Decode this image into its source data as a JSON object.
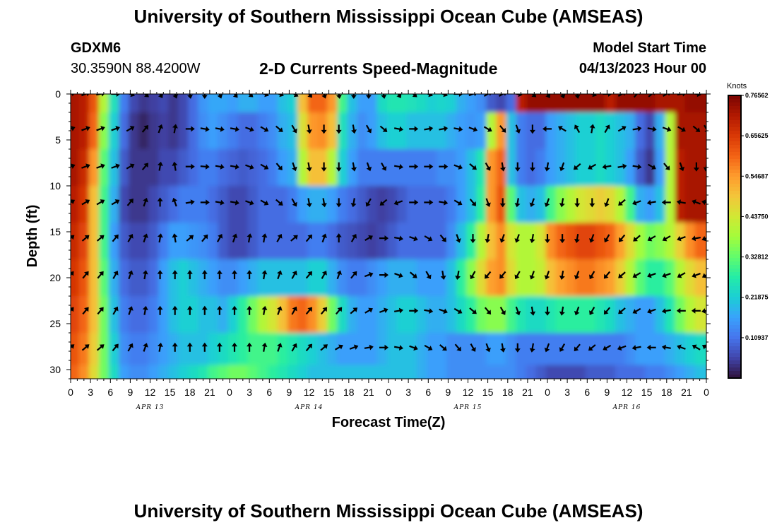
{
  "header": {
    "title": "University of Southern Mississippi Ocean Cube (AMSEAS)",
    "station_id": "GDXM6",
    "station_location": "30.3590N  88.4200W",
    "plot_title": "2-D Currents Speed-Magnitude",
    "model_start_label": "Model Start Time",
    "model_start_value": "04/13/2023 Hour 00"
  },
  "footer": {
    "title": "University of Southern Mississippi Ocean Cube (AMSEAS)"
  },
  "colors": {
    "colormap": [
      "#30123b",
      "#4145ab",
      "#4675ed",
      "#39a2fc",
      "#1bcfd4",
      "#24eca6",
      "#61fc6c",
      "#a4fc3b",
      "#d1e834",
      "#f3c63a",
      "#fe9b2d",
      "#f36315",
      "#d93806",
      "#b11901",
      "#7a0402"
    ]
  },
  "chart_data": {
    "type": "heatmap",
    "title": "2-D Currents Speed-Magnitude",
    "xlabel": "Forecast Time(Z)",
    "ylabel": "Depth (ft)",
    "x_range_hours": [
      0,
      96
    ],
    "y_range_ft": [
      0,
      31
    ],
    "x_tick_labels": [
      "0",
      "3",
      "6",
      "9",
      "12",
      "15",
      "18",
      "21",
      "0",
      "3",
      "6",
      "9",
      "12",
      "15",
      "18",
      "21",
      "0",
      "3",
      "6",
      "9",
      "12",
      "15",
      "18",
      "21",
      "0",
      "3",
      "6",
      "9",
      "12",
      "15",
      "18",
      "21",
      "0"
    ],
    "y_ticks": [
      0,
      5,
      10,
      15,
      20,
      25,
      30
    ],
    "day_labels": [
      {
        "label": "APR 13",
        "hour": 12
      },
      {
        "label": "APR 14",
        "hour": 36
      },
      {
        "label": "APR 15",
        "hour": 60
      },
      {
        "label": "APR 16",
        "hour": 84
      }
    ],
    "colorbar": {
      "unit": "Knots",
      "min": 0.0,
      "max": 0.7656,
      "tick_labels": [
        "0.76562",
        "0.65625",
        "0.54687",
        "0.43750",
        "0.32812",
        "0.21875",
        "0.10937"
      ],
      "tick_values": [
        0.76562,
        0.65625,
        0.54687,
        0.4375,
        0.32812,
        0.21875,
        0.10937
      ]
    },
    "depth_levels_ft": [
      0,
      4,
      8,
      12,
      16,
      20,
      24,
      28,
      31
    ],
    "time_step_hours": 1.5,
    "speed_knots": [
      [
        0.72,
        0.72,
        0.7,
        0.62,
        0.4,
        0.25,
        0.12,
        0.06,
        0.04,
        0.05,
        0.06,
        0.04,
        0.06,
        0.1,
        0.15,
        0.17,
        0.17,
        0.16,
        0.18,
        0.18,
        0.16,
        0.16,
        0.2,
        0.22,
        0.5,
        0.6,
        0.6,
        0.55,
        0.3,
        0.2,
        0.16,
        0.16,
        0.24,
        0.26,
        0.26,
        0.25,
        0.24,
        0.22,
        0.23,
        0.22,
        0.18,
        0.16,
        0.14,
        0.08,
        0.06,
        0.1,
        0.7,
        0.74,
        0.74,
        0.74,
        0.74,
        0.74,
        0.74,
        0.74,
        0.74,
        0.7,
        0.74,
        0.74,
        0.74,
        0.74,
        0.72,
        0.72,
        0.72,
        0.74,
        0.74
      ],
      [
        0.72,
        0.72,
        0.7,
        0.6,
        0.36,
        0.22,
        0.1,
        0.04,
        0.02,
        0.04,
        0.05,
        0.04,
        0.06,
        0.1,
        0.14,
        0.16,
        0.14,
        0.12,
        0.1,
        0.1,
        0.12,
        0.14,
        0.18,
        0.2,
        0.45,
        0.55,
        0.56,
        0.5,
        0.25,
        0.18,
        0.14,
        0.16,
        0.2,
        0.22,
        0.22,
        0.2,
        0.2,
        0.2,
        0.2,
        0.18,
        0.16,
        0.15,
        0.16,
        0.4,
        0.55,
        0.2,
        0.12,
        0.1,
        0.1,
        0.16,
        0.18,
        0.2,
        0.22,
        0.22,
        0.24,
        0.22,
        0.2,
        0.18,
        0.1,
        0.06,
        0.18,
        0.4,
        0.72,
        0.72,
        0.72
      ],
      [
        0.72,
        0.72,
        0.68,
        0.55,
        0.32,
        0.2,
        0.08,
        0.04,
        0.04,
        0.04,
        0.06,
        0.06,
        0.08,
        0.1,
        0.12,
        0.12,
        0.1,
        0.09,
        0.08,
        0.09,
        0.1,
        0.12,
        0.16,
        0.18,
        0.4,
        0.5,
        0.5,
        0.4,
        0.22,
        0.16,
        0.12,
        0.12,
        0.12,
        0.12,
        0.12,
        0.12,
        0.12,
        0.12,
        0.14,
        0.14,
        0.16,
        0.2,
        0.26,
        0.55,
        0.6,
        0.2,
        0.12,
        0.1,
        0.12,
        0.16,
        0.18,
        0.2,
        0.22,
        0.22,
        0.24,
        0.22,
        0.2,
        0.16,
        0.08,
        0.04,
        0.16,
        0.4,
        0.7,
        0.72,
        0.72
      ],
      [
        0.7,
        0.7,
        0.66,
        0.5,
        0.3,
        0.18,
        0.06,
        0.04,
        0.04,
        0.06,
        0.08,
        0.1,
        0.12,
        0.12,
        0.12,
        0.1,
        0.08,
        0.06,
        0.06,
        0.08,
        0.1,
        0.1,
        0.1,
        0.12,
        0.16,
        0.18,
        0.18,
        0.16,
        0.12,
        0.1,
        0.08,
        0.06,
        0.05,
        0.06,
        0.08,
        0.1,
        0.1,
        0.1,
        0.1,
        0.12,
        0.16,
        0.2,
        0.28,
        0.55,
        0.62,
        0.32,
        0.2,
        0.18,
        0.2,
        0.3,
        0.36,
        0.4,
        0.44,
        0.46,
        0.48,
        0.46,
        0.4,
        0.3,
        0.18,
        0.16,
        0.2,
        0.4,
        0.7,
        0.72,
        0.72
      ],
      [
        0.68,
        0.68,
        0.64,
        0.5,
        0.3,
        0.16,
        0.08,
        0.06,
        0.06,
        0.08,
        0.12,
        0.16,
        0.16,
        0.15,
        0.14,
        0.12,
        0.08,
        0.06,
        0.06,
        0.08,
        0.1,
        0.1,
        0.1,
        0.1,
        0.1,
        0.12,
        0.12,
        0.1,
        0.08,
        0.07,
        0.06,
        0.05,
        0.06,
        0.08,
        0.1,
        0.1,
        0.1,
        0.1,
        0.1,
        0.14,
        0.2,
        0.28,
        0.4,
        0.5,
        0.56,
        0.44,
        0.4,
        0.4,
        0.44,
        0.56,
        0.6,
        0.62,
        0.64,
        0.64,
        0.62,
        0.6,
        0.54,
        0.46,
        0.38,
        0.34,
        0.36,
        0.4,
        0.48,
        0.56,
        0.6
      ],
      [
        0.66,
        0.66,
        0.62,
        0.5,
        0.32,
        0.18,
        0.1,
        0.08,
        0.08,
        0.1,
        0.16,
        0.2,
        0.22,
        0.2,
        0.18,
        0.16,
        0.14,
        0.14,
        0.16,
        0.18,
        0.2,
        0.2,
        0.2,
        0.2,
        0.2,
        0.22,
        0.22,
        0.18,
        0.14,
        0.12,
        0.12,
        0.14,
        0.16,
        0.18,
        0.18,
        0.18,
        0.16,
        0.16,
        0.16,
        0.2,
        0.28,
        0.36,
        0.46,
        0.54,
        0.56,
        0.46,
        0.4,
        0.4,
        0.42,
        0.5,
        0.54,
        0.56,
        0.58,
        0.58,
        0.56,
        0.54,
        0.48,
        0.4,
        0.32,
        0.28,
        0.28,
        0.32,
        0.4,
        0.46,
        0.5
      ],
      [
        0.64,
        0.64,
        0.6,
        0.5,
        0.34,
        0.2,
        0.12,
        0.1,
        0.1,
        0.12,
        0.16,
        0.2,
        0.22,
        0.22,
        0.2,
        0.2,
        0.18,
        0.22,
        0.28,
        0.34,
        0.4,
        0.44,
        0.5,
        0.58,
        0.6,
        0.56,
        0.48,
        0.34,
        0.24,
        0.18,
        0.16,
        0.16,
        0.18,
        0.2,
        0.22,
        0.22,
        0.2,
        0.18,
        0.18,
        0.2,
        0.24,
        0.28,
        0.34,
        0.36,
        0.36,
        0.3,
        0.26,
        0.24,
        0.24,
        0.26,
        0.28,
        0.28,
        0.28,
        0.28,
        0.26,
        0.24,
        0.2,
        0.18,
        0.16,
        0.16,
        0.2,
        0.26,
        0.34,
        0.4,
        0.44
      ],
      [
        0.62,
        0.62,
        0.58,
        0.48,
        0.34,
        0.22,
        0.14,
        0.12,
        0.12,
        0.14,
        0.16,
        0.18,
        0.2,
        0.2,
        0.2,
        0.22,
        0.24,
        0.26,
        0.28,
        0.3,
        0.3,
        0.3,
        0.28,
        0.26,
        0.24,
        0.22,
        0.2,
        0.18,
        0.16,
        0.16,
        0.16,
        0.16,
        0.18,
        0.2,
        0.2,
        0.2,
        0.18,
        0.16,
        0.16,
        0.14,
        0.14,
        0.14,
        0.14,
        0.16,
        0.16,
        0.14,
        0.12,
        0.12,
        0.12,
        0.12,
        0.12,
        0.12,
        0.12,
        0.12,
        0.12,
        0.12,
        0.12,
        0.14,
        0.16,
        0.16,
        0.16,
        0.18,
        0.2,
        0.22,
        0.24
      ],
      [
        0.6,
        0.6,
        0.56,
        0.46,
        0.34,
        0.24,
        0.16,
        0.14,
        0.14,
        0.16,
        0.18,
        0.2,
        0.22,
        0.24,
        0.26,
        0.3,
        0.32,
        0.34,
        0.34,
        0.32,
        0.3,
        0.28,
        0.26,
        0.24,
        0.22,
        0.2,
        0.2,
        0.2,
        0.2,
        0.2,
        0.2,
        0.2,
        0.2,
        0.2,
        0.2,
        0.2,
        0.18,
        0.16,
        0.16,
        0.14,
        0.14,
        0.14,
        0.14,
        0.14,
        0.14,
        0.14,
        0.12,
        0.1,
        0.08,
        0.06,
        0.06,
        0.06,
        0.06,
        0.08,
        0.08,
        0.08,
        0.1,
        0.1,
        0.1,
        0.12,
        0.12,
        0.14,
        0.16,
        0.18,
        0.2
      ]
    ],
    "arrow_rows_ft": [
      0,
      3.8,
      7.9,
      11.8,
      15.7,
      19.7,
      23.6,
      27.6
    ],
    "arrow_cols_hours": [
      0,
      2.25,
      4.5,
      6.75,
      9,
      11.25,
      13.5,
      15.75,
      18,
      20.25,
      22.5,
      24.75,
      27,
      29.25,
      31.5,
      33.75,
      36,
      38.25,
      40.5,
      42.75,
      45,
      47.25,
      49.5,
      51.75,
      54,
      56.25,
      58.5,
      60.75,
      63,
      65.25,
      67.5,
      69.75,
      72,
      74.25,
      76.5,
      78.75,
      81,
      83.25,
      85.5,
      87.75,
      90,
      92.25,
      94.5,
      96
    ],
    "arrow_dirs_deg": [
      [
        70,
        70,
        80,
        90,
        110,
        130,
        150,
        160,
        170,
        180,
        160,
        140,
        130,
        110,
        110,
        120,
        140,
        160,
        170,
        180,
        180,
        170,
        150,
        130,
        110,
        110,
        90,
        70,
        60,
        60,
        100,
        130,
        150,
        160,
        170,
        110,
        90,
        60,
        40,
        50,
        60,
        80,
        100,
        120
      ],
      [
        70,
        70,
        70,
        70,
        60,
        40,
        20,
        10,
        90,
        100,
        100,
        100,
        110,
        120,
        130,
        150,
        170,
        180,
        180,
        170,
        150,
        130,
        100,
        90,
        80,
        80,
        100,
        110,
        120,
        140,
        160,
        180,
        270,
        300,
        330,
        10,
        30,
        60,
        80,
        100,
        110,
        120,
        130,
        150
      ],
      [
        70,
        70,
        70,
        70,
        60,
        40,
        10,
        350,
        90,
        95,
        100,
        100,
        110,
        120,
        140,
        160,
        170,
        180,
        180,
        170,
        160,
        150,
        100,
        90,
        90,
        90,
        110,
        130,
        150,
        170,
        180,
        180,
        190,
        200,
        230,
        240,
        260,
        80,
        100,
        120,
        140,
        160,
        180,
        190
      ],
      [
        60,
        60,
        60,
        60,
        40,
        20,
        0,
        340,
        80,
        90,
        100,
        100,
        110,
        120,
        130,
        150,
        170,
        170,
        180,
        190,
        210,
        230,
        250,
        90,
        90,
        100,
        120,
        140,
        160,
        180,
        190,
        200,
        200,
        190,
        180,
        180,
        200,
        230,
        250,
        260,
        270,
        280,
        290,
        280
      ],
      [
        50,
        50,
        50,
        40,
        30,
        20,
        10,
        350,
        50,
        40,
        30,
        20,
        10,
        10,
        30,
        50,
        40,
        20,
        0,
        30,
        60,
        90,
        100,
        110,
        120,
        140,
        160,
        180,
        190,
        200,
        200,
        190,
        180,
        180,
        190,
        200,
        210,
        220,
        230,
        240,
        240,
        250,
        260,
        250
      ],
      [
        40,
        40,
        40,
        30,
        20,
        10,
        0,
        0,
        0,
        0,
        0,
        0,
        0,
        10,
        20,
        30,
        40,
        30,
        20,
        40,
        70,
        90,
        110,
        130,
        150,
        170,
        190,
        210,
        220,
        220,
        210,
        200,
        200,
        190,
        200,
        210,
        220,
        230,
        240,
        250,
        250,
        240,
        250,
        240
      ],
      [
        40,
        40,
        40,
        30,
        20,
        10,
        0,
        0,
        0,
        0,
        0,
        0,
        0,
        10,
        20,
        30,
        40,
        40,
        40,
        50,
        60,
        70,
        80,
        90,
        100,
        110,
        120,
        130,
        140,
        150,
        160,
        170,
        180,
        190,
        200,
        210,
        220,
        230,
        240,
        250,
        260,
        270,
        270,
        260
      ],
      [
        50,
        50,
        50,
        40,
        30,
        20,
        10,
        0,
        0,
        0,
        0,
        0,
        0,
        10,
        20,
        30,
        40,
        50,
        60,
        70,
        80,
        90,
        100,
        110,
        120,
        130,
        140,
        150,
        160,
        170,
        180,
        190,
        200,
        210,
        220,
        230,
        240,
        250,
        260,
        270,
        280,
        290,
        300,
        300
      ]
    ]
  }
}
